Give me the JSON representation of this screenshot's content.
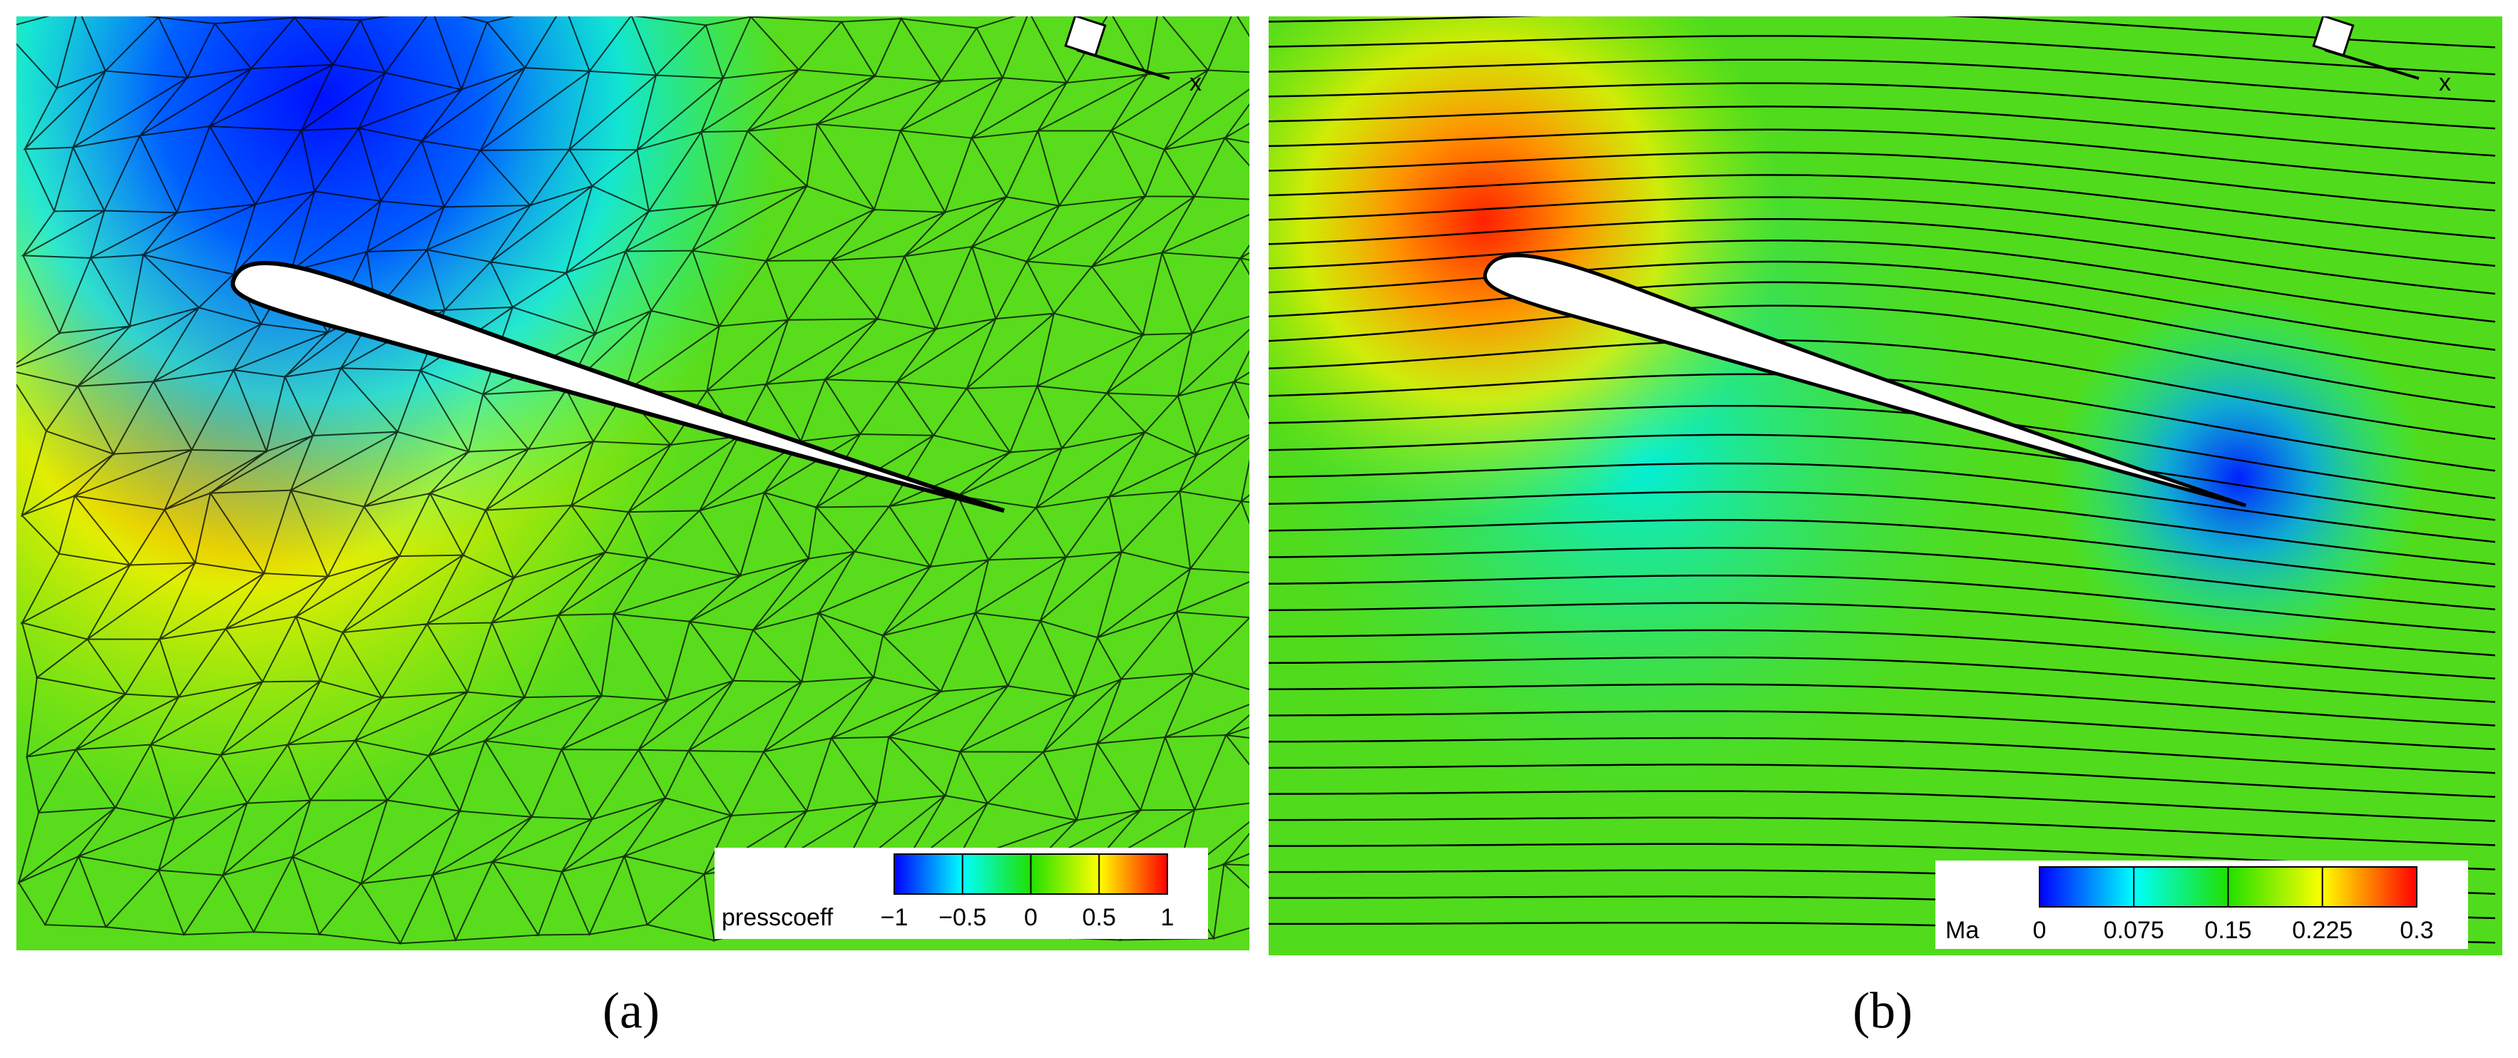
{
  "panels": [
    {
      "caption": "(a)",
      "axis_label": "x",
      "colorbar": {
        "label": "presscoeff",
        "ticks": [
          {
            "value": -1,
            "label": "−1"
          },
          {
            "value": -0.5,
            "label": "−0.5"
          },
          0,
          0.5,
          1
        ]
      }
    },
    {
      "caption": "(b)",
      "axis_label": "x",
      "colorbar": {
        "label": "Ma",
        "ticks": [
          0,
          0.075,
          0.15,
          0.225,
          0.3
        ]
      }
    }
  ]
}
